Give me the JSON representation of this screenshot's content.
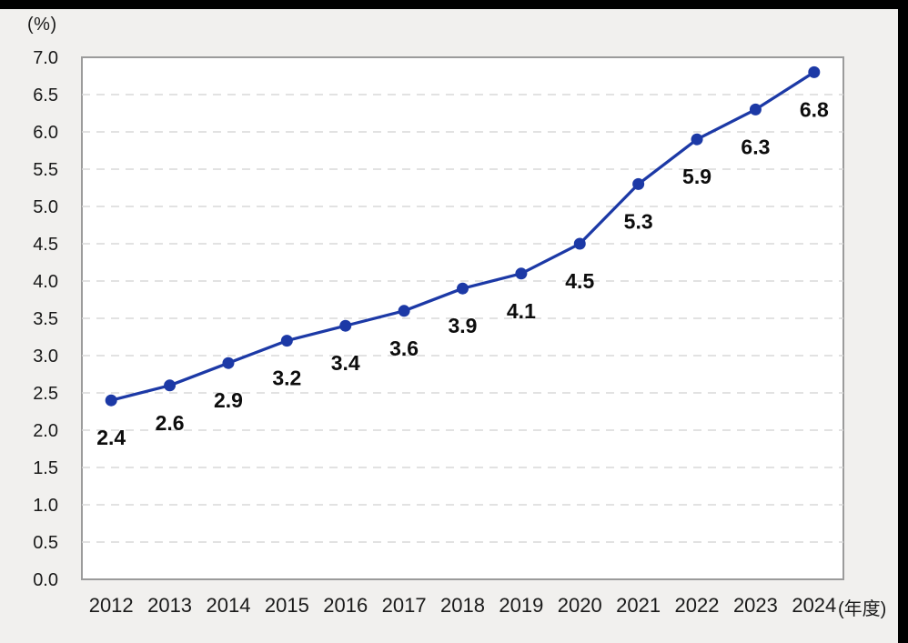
{
  "axes_units": {
    "y_unit": "(%)",
    "x_unit": "(年度)"
  },
  "chart_data": {
    "type": "line",
    "title": "",
    "categories": [
      "2012",
      "2013",
      "2014",
      "2015",
      "2016",
      "2017",
      "2018",
      "2019",
      "2020",
      "2021",
      "2022",
      "2023",
      "2024"
    ],
    "series": [
      {
        "name": "",
        "values": [
          2.4,
          2.6,
          2.9,
          3.2,
          3.4,
          3.6,
          3.9,
          4.1,
          4.5,
          5.3,
          5.9,
          6.3,
          6.8
        ]
      }
    ],
    "point_labels": [
      "2.4",
      "2.6",
      "2.9",
      "3.2",
      "3.4",
      "3.6",
      "3.9",
      "4.1",
      "4.5",
      "5.3",
      "5.9",
      "6.3",
      "6.8"
    ],
    "xlabel": "(年度)",
    "ylabel": "(%)",
    "ylim": [
      0.0,
      7.0
    ],
    "ytick_step": 0.5,
    "ytick_labels": [
      "0.0",
      "0.5",
      "1.0",
      "1.5",
      "2.0",
      "2.5",
      "3.0",
      "3.5",
      "4.0",
      "4.5",
      "5.0",
      "5.5",
      "6.0",
      "6.5",
      "7.0"
    ],
    "grid": "horizontal-dashed",
    "legend": "none",
    "colors": {
      "line": "#1c39a6",
      "marker": "#1c39a6",
      "plot_bg": "#ffffff",
      "page_bg": "#f1f0ee",
      "grid": "#d8d8d8",
      "plot_border": "#9b9b9b",
      "axis_text": "#1a1a1a",
      "point_label_text": "#0d0d0d",
      "frame": "#000000"
    }
  }
}
